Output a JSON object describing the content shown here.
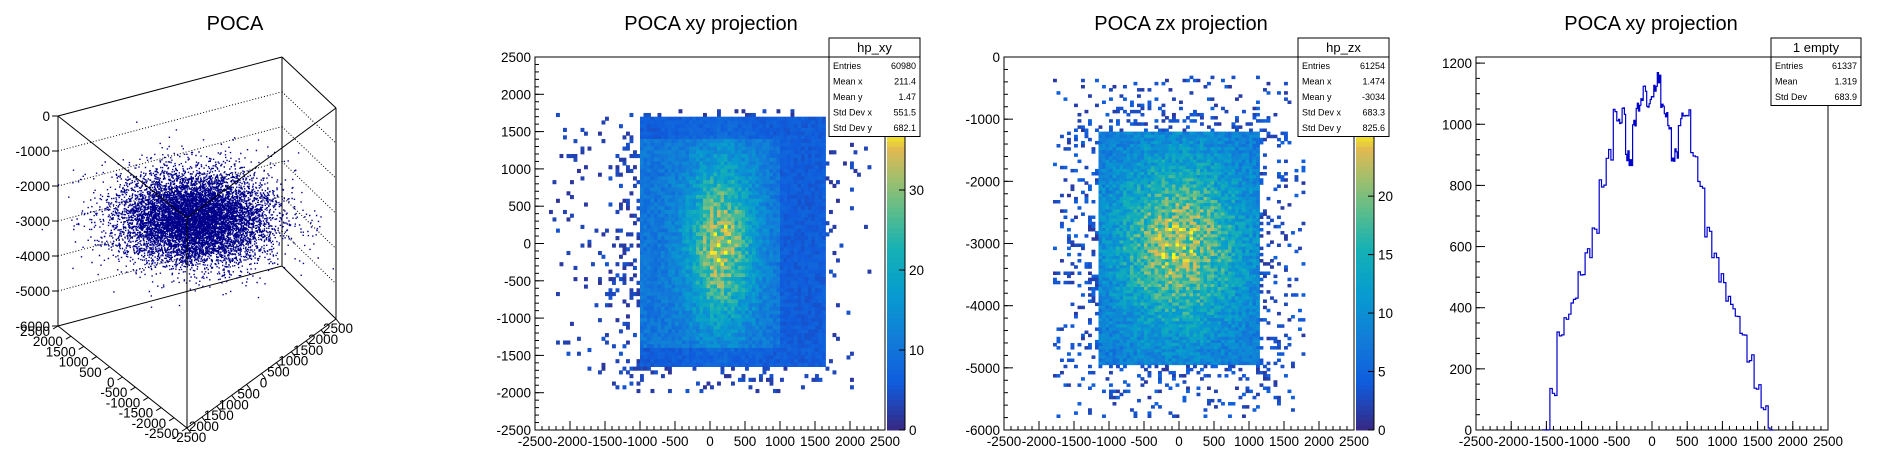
{
  "chart_data": [
    {
      "type": "scatter",
      "title": "POCA",
      "z_ticks": [
        "0",
        "-1000",
        "-2000",
        "-3000",
        "-4000",
        "-5000",
        "-6000"
      ],
      "y_ticks": [
        "2500",
        "2000",
        "1500",
        "1000",
        "500",
        "0",
        "-500",
        "-1000",
        "-1500",
        "-2000",
        "-2500"
      ],
      "x_ticks": [
        "-2500",
        "2000",
        "1500",
        "1000",
        "500",
        "0",
        "500",
        "1000",
        "1500",
        "2000",
        "2500"
      ],
      "colors": {
        "points": "#00008b"
      }
    },
    {
      "type": "heatmap",
      "title": "POCA xy projection",
      "xlim": [
        -2500,
        2500
      ],
      "ylim": [
        -2500,
        2500
      ],
      "x_ticks": [
        "-2500",
        "-2000",
        "-1500",
        "-1000",
        "-500",
        "0",
        "500",
        "1000",
        "1500",
        "2000",
        "2500"
      ],
      "y_ticks": [
        "2500",
        "2000",
        "1500",
        "1000",
        "500",
        "0",
        "-500",
        "-1000",
        "-1500",
        "-2000",
        "-2500"
      ],
      "z_ticks": [
        "30",
        "20",
        "10",
        "0"
      ],
      "zlim": [
        0,
        38
      ],
      "stats": {
        "name": "hp_xy",
        "rows": [
          {
            "label": "Entries",
            "value": "60980"
          },
          {
            "label": "Mean x",
            "value": "211.4"
          },
          {
            "label": "Mean y",
            "value": "1.47"
          },
          {
            "label": "Std Dev x",
            "value": "551.5"
          },
          {
            "label": "Std Dev y",
            "value": "682.1"
          }
        ]
      }
    },
    {
      "type": "heatmap",
      "title": "POCA zx projection",
      "xlim": [
        -2500,
        2500
      ],
      "ylim": [
        -6000,
        0
      ],
      "x_ticks": [
        "-2500",
        "-2000",
        "-1500",
        "-1000",
        "-500",
        "0",
        "500",
        "1000",
        "1500",
        "2000",
        "2500"
      ],
      "y_ticks": [
        "0",
        "-1000",
        "-2000",
        "-3000",
        "-4000",
        "-5000",
        "-6000"
      ],
      "z_ticks": [
        "20",
        "15",
        "10",
        "5",
        "0"
      ],
      "zlim": [
        0,
        26
      ],
      "stats": {
        "name": "hp_zx",
        "rows": [
          {
            "label": "Entries",
            "value": "61254"
          },
          {
            "label": "Mean x",
            "value": "1.474"
          },
          {
            "label": "Mean y",
            "value": "-3034"
          },
          {
            "label": "Std Dev x",
            "value": "683.3"
          },
          {
            "label": "Std Dev y",
            "value": "825.6"
          }
        ]
      }
    },
    {
      "type": "line",
      "title": "POCA xy projection",
      "xlim": [
        -2500,
        2500
      ],
      "ylim": [
        0,
        1220
      ],
      "x_ticks": [
        "-2500",
        "-2000",
        "-1500",
        "-1000",
        "-500",
        "0",
        "500",
        "1000",
        "1500",
        "2000",
        "2500"
      ],
      "y_ticks": [
        "1200",
        "1000",
        "800",
        "600",
        "400",
        "200",
        "0"
      ],
      "x": [
        -1500,
        -1400,
        -1300,
        -1200,
        -1100,
        -1000,
        -900,
        -800,
        -700,
        -600,
        -500,
        -450,
        -400,
        -350,
        -300,
        -250,
        -200,
        -150,
        -100,
        -50,
        0,
        50,
        100,
        150,
        200,
        250,
        300,
        350,
        400,
        450,
        500,
        600,
        700,
        800,
        900,
        1000,
        1100,
        1200,
        1300,
        1400,
        1500,
        1600,
        1700
      ],
      "values": [
        5,
        130,
        320,
        380,
        420,
        500,
        580,
        650,
        800,
        900,
        1030,
        1010,
        1040,
        900,
        880,
        1000,
        1050,
        1080,
        1110,
        1060,
        1080,
        1120,
        1150,
        1060,
        1020,
        1000,
        880,
        900,
        1000,
        1040,
        1030,
        900,
        800,
        650,
        580,
        500,
        420,
        380,
        320,
        230,
        130,
        60,
        5
      ],
      "stats": {
        "name": "1 empty",
        "rows": [
          {
            "label": "Entries",
            "value": "61337"
          },
          {
            "label": "Mean",
            "value": "1.319"
          },
          {
            "label": "Std Dev",
            "value": "683.9"
          }
        ]
      },
      "colors": {
        "line": "#0000cc"
      }
    }
  ]
}
